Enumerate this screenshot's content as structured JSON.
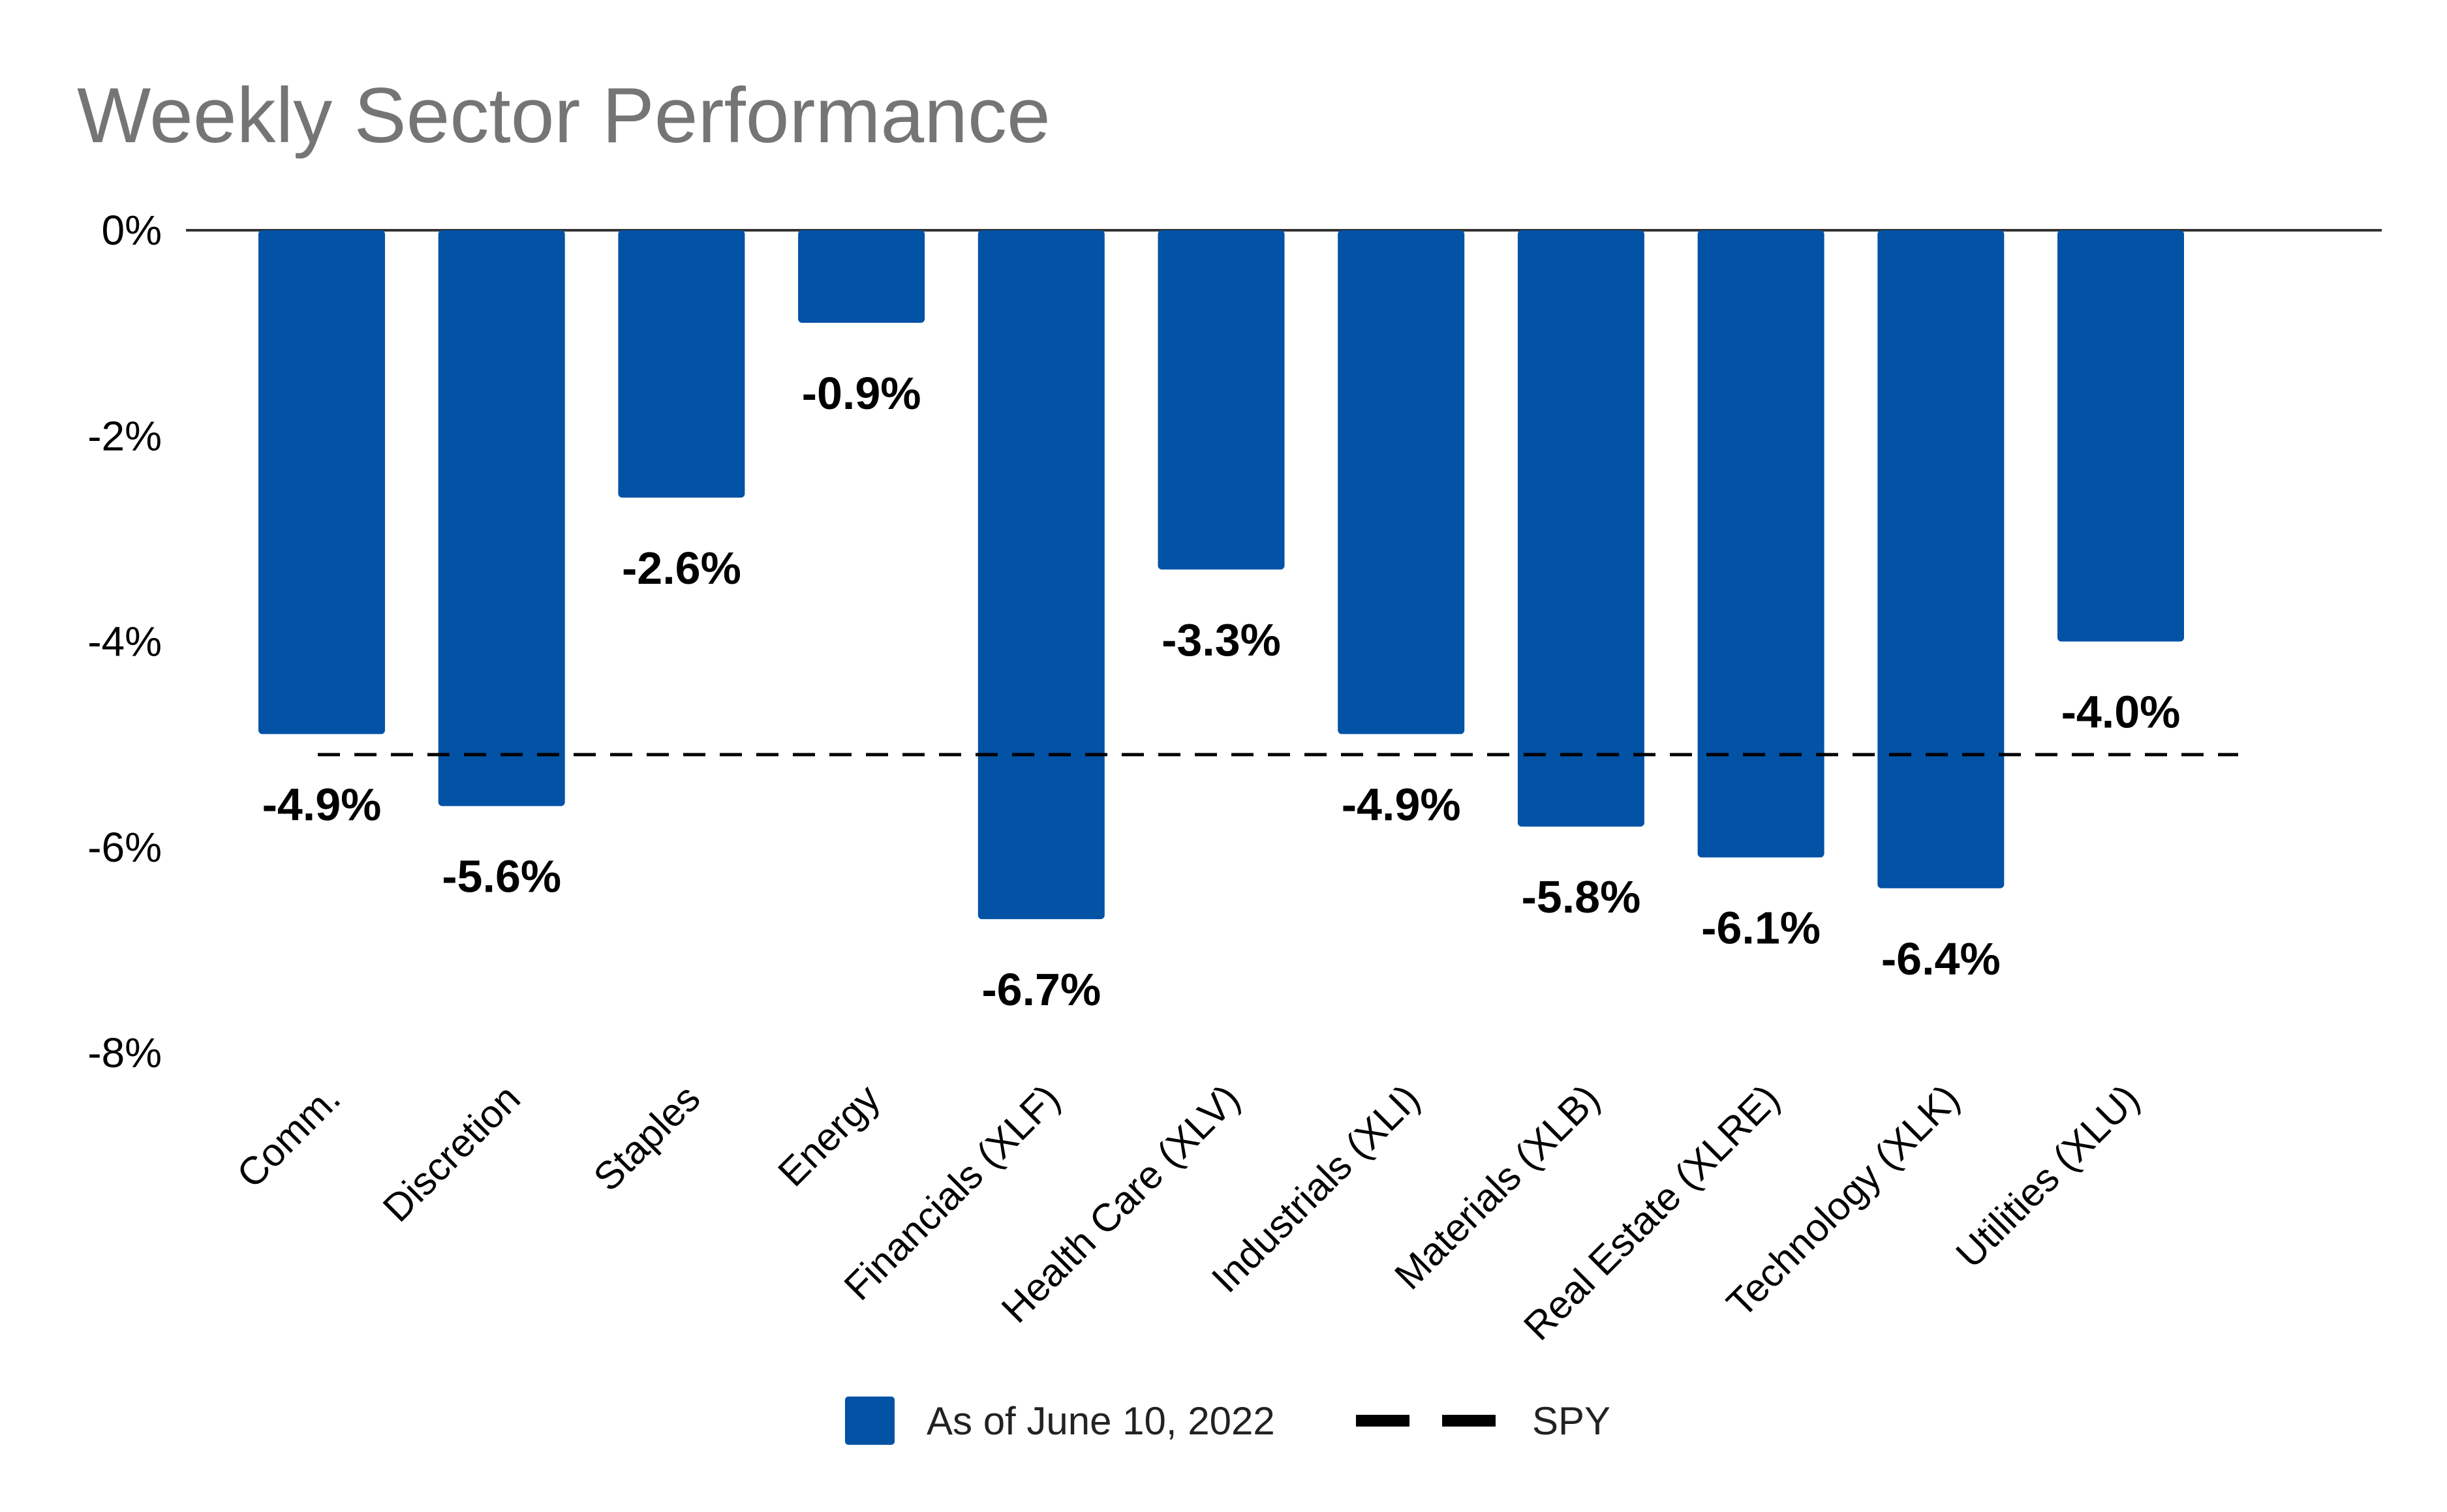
{
  "chart_data": {
    "type": "bar",
    "title": "Weekly Sector Performance",
    "categories": [
      "Comm.",
      "Discretion",
      "Staples",
      "Energy",
      "Financials (XLF)",
      "Health Care (XLV)",
      "Industrials (XLI)",
      "Materials (XLB)",
      "Real Estate (XLRE)",
      "Technology (XLK)",
      "Utilities (XLU)"
    ],
    "series": [
      {
        "name": "As of June 10, 2022",
        "values": [
          -4.9,
          -5.6,
          -2.6,
          -0.9,
          -6.7,
          -3.3,
          -4.9,
          -5.8,
          -6.1,
          -6.4,
          -4.0
        ],
        "color": "#0252a5"
      }
    ],
    "data_labels": [
      "-4.9%",
      "-5.6%",
      "-2.6%",
      "-0.9%",
      "-6.7%",
      "-3.3%",
      "-4.9%",
      "-5.8%",
      "-6.1%",
      "-6.4%",
      "-4.0%"
    ],
    "reference_line": {
      "name": "SPY",
      "value": -5.1,
      "style": "dashed",
      "color": "#000000"
    },
    "ylim": [
      -8,
      0
    ],
    "yticks": [
      0,
      -2,
      -4,
      -6,
      -8
    ],
    "ytick_labels": [
      "0%",
      "-2%",
      "-4%",
      "-6%",
      "-8%"
    ],
    "xlabel": "",
    "ylabel": "",
    "grid": false,
    "legend_position": "bottom"
  }
}
